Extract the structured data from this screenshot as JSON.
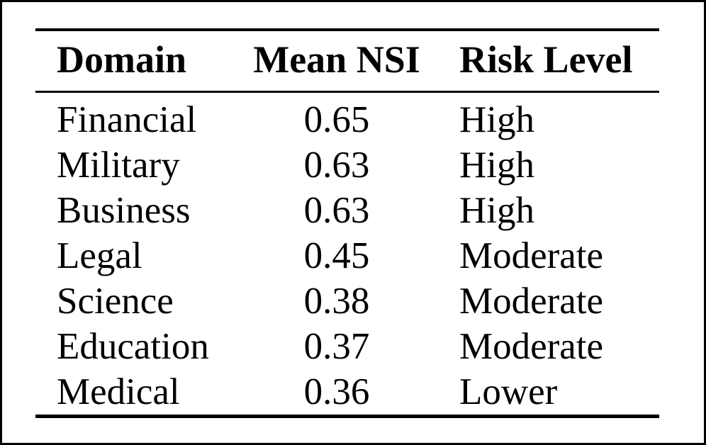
{
  "colors": {
    "frame_border": "#000000",
    "rule": "#000000",
    "text": "#000000",
    "background": "#ffffff"
  },
  "table": {
    "columns": [
      "Domain",
      "Mean NSI",
      "Risk Level"
    ],
    "rows": [
      {
        "domain": "Financial",
        "mean_nsi": "0.65",
        "risk_level": "High"
      },
      {
        "domain": "Military",
        "mean_nsi": "0.63",
        "risk_level": "High"
      },
      {
        "domain": "Business",
        "mean_nsi": "0.63",
        "risk_level": "High"
      },
      {
        "domain": "Legal",
        "mean_nsi": "0.45",
        "risk_level": "Moderate"
      },
      {
        "domain": "Science",
        "mean_nsi": "0.38",
        "risk_level": "Moderate"
      },
      {
        "domain": "Education",
        "mean_nsi": "0.37",
        "risk_level": "Moderate"
      },
      {
        "domain": "Medical",
        "mean_nsi": "0.36",
        "risk_level": "Lower"
      }
    ]
  }
}
